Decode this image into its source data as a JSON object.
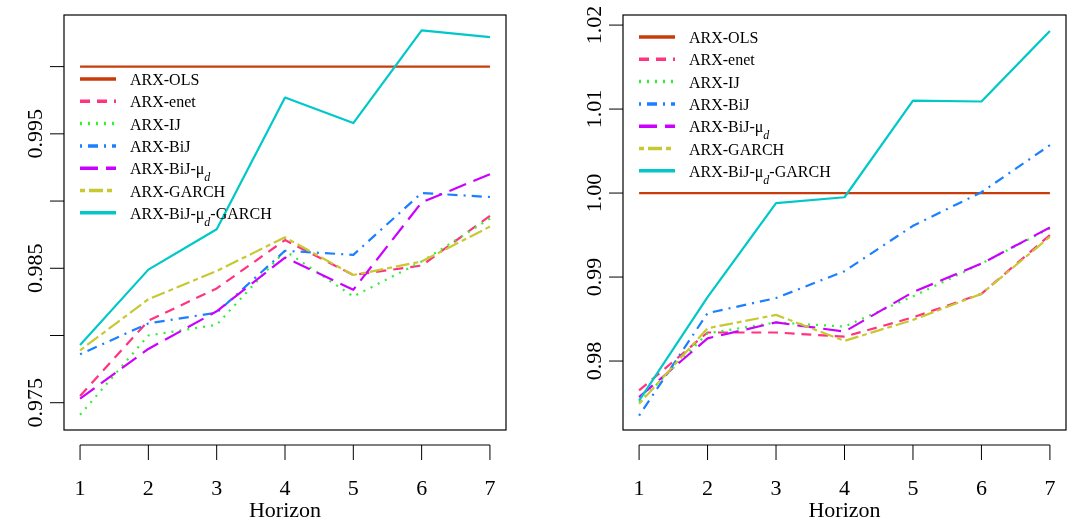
{
  "chart_data": [
    {
      "type": "line",
      "xlabel": "Horizon",
      "x": [
        1,
        2,
        3,
        4,
        5,
        6,
        7
      ],
      "xlim": [
        0.765,
        7.235
      ],
      "xticks": [
        1,
        2,
        3,
        4,
        5,
        6,
        7
      ],
      "ylim": [
        0.97297,
        1.00384
      ],
      "yticks": [
        0.975,
        {
          "value": 0.98,
          "label": null
        },
        0.985,
        {
          "value": 0.99,
          "label": null
        },
        0.995,
        {
          "value": 1.0,
          "label": null
        }
      ],
      "legend": "top left",
      "grid": false,
      "series": [
        {
          "name": "ARX-OLS",
          "color": "#c83c0a",
          "line_style": "solid",
          "values": [
            1.0,
            1.0,
            1.0,
            1.0,
            1.0,
            1.0,
            1.0
          ]
        },
        {
          "name": "ARX-enet",
          "color": "#ff3380",
          "line_style": "dashed",
          "values": [
            0.9755,
            0.9811,
            0.9835,
            0.9871,
            0.9845,
            0.9852,
            0.9889
          ]
        },
        {
          "name": "ARX-IJ",
          "color": "#33f033",
          "line_style": "dotted",
          "values": [
            0.9741,
            0.98,
            0.9808,
            0.9863,
            0.9829,
            0.9855,
            0.9887
          ]
        },
        {
          "name": "ARX-BiJ",
          "color": "#1a80ff",
          "line_style": "dashdot",
          "values": [
            0.9786,
            0.9809,
            0.9817,
            0.9863,
            0.986,
            0.9906,
            0.9903
          ]
        },
        {
          "name": "ARX-BiJ-μ$_{d}$",
          "color": "#cc00ff",
          "line_style": "longdash",
          "values": [
            0.9753,
            0.979,
            0.9818,
            0.9858,
            0.9834,
            0.9899,
            0.992
          ]
        },
        {
          "name": "ARX-GARCH",
          "color": "#c8c832",
          "line_style": "twodash",
          "values": [
            0.9789,
            0.9827,
            0.9848,
            0.9873,
            0.9845,
            0.9855,
            0.9881
          ]
        },
        {
          "name": "ARX-BiJ-μ$_{d}$-GARCH",
          "color": "#00c8c8",
          "line_style": "solid",
          "values": [
            0.9793,
            0.9849,
            0.9879,
            0.9977,
            0.9958,
            1.0027,
            1.0022
          ]
        }
      ]
    },
    {
      "type": "line",
      "xlabel": "Horizon",
      "x": [
        1,
        2,
        3,
        4,
        5,
        6,
        7
      ],
      "xlim": [
        0.765,
        7.235
      ],
      "xticks": [
        1,
        2,
        3,
        4,
        5,
        6,
        7
      ],
      "ylim": [
        0.97179,
        1.0212
      ],
      "yticks": [
        0.98,
        0.99,
        {
          "value": 1.0,
          "label": "1.00"
        },
        1.01,
        1.02
      ],
      "legend": "top left",
      "grid": false,
      "series": [
        {
          "name": "ARX-OLS",
          "color": "#c83c0a",
          "line_style": "solid",
          "values": [
            1.0,
            1.0,
            1.0,
            1.0,
            1.0,
            1.0,
            1.0
          ]
        },
        {
          "name": "ARX-enet",
          "color": "#ff3380",
          "line_style": "dashed",
          "values": [
            0.9765,
            0.9834,
            0.9834,
            0.9829,
            0.9852,
            0.988,
            0.995
          ]
        },
        {
          "name": "ARX-IJ",
          "color": "#33f033",
          "line_style": "dotted",
          "values": [
            0.9751,
            0.9833,
            0.9846,
            0.9841,
            0.9877,
            0.9916,
            0.9958
          ]
        },
        {
          "name": "ARX-BiJ",
          "color": "#1a80ff",
          "line_style": "dashdot",
          "values": [
            0.9735,
            0.9857,
            0.9875,
            0.9907,
            0.9961,
            1.0001,
            1.0057
          ]
        },
        {
          "name": "ARX-BiJ-μ$_{d}$",
          "color": "#cc00ff",
          "line_style": "longdash",
          "values": [
            0.9757,
            0.9827,
            0.9846,
            0.9835,
            0.9882,
            0.9916,
            0.9959
          ]
        },
        {
          "name": "ARX-GARCH",
          "color": "#c8c832",
          "line_style": "twodash",
          "values": [
            0.9749,
            0.9839,
            0.9855,
            0.9824,
            0.9849,
            0.988,
            0.9948
          ]
        },
        {
          "name": "ARX-BiJ-μ$_{d}$-GARCH",
          "color": "#00c8c8",
          "line_style": "solid",
          "values": [
            0.9753,
            0.9876,
            0.9988,
            0.9995,
            1.011,
            1.0109,
            1.0193
          ]
        }
      ]
    }
  ]
}
